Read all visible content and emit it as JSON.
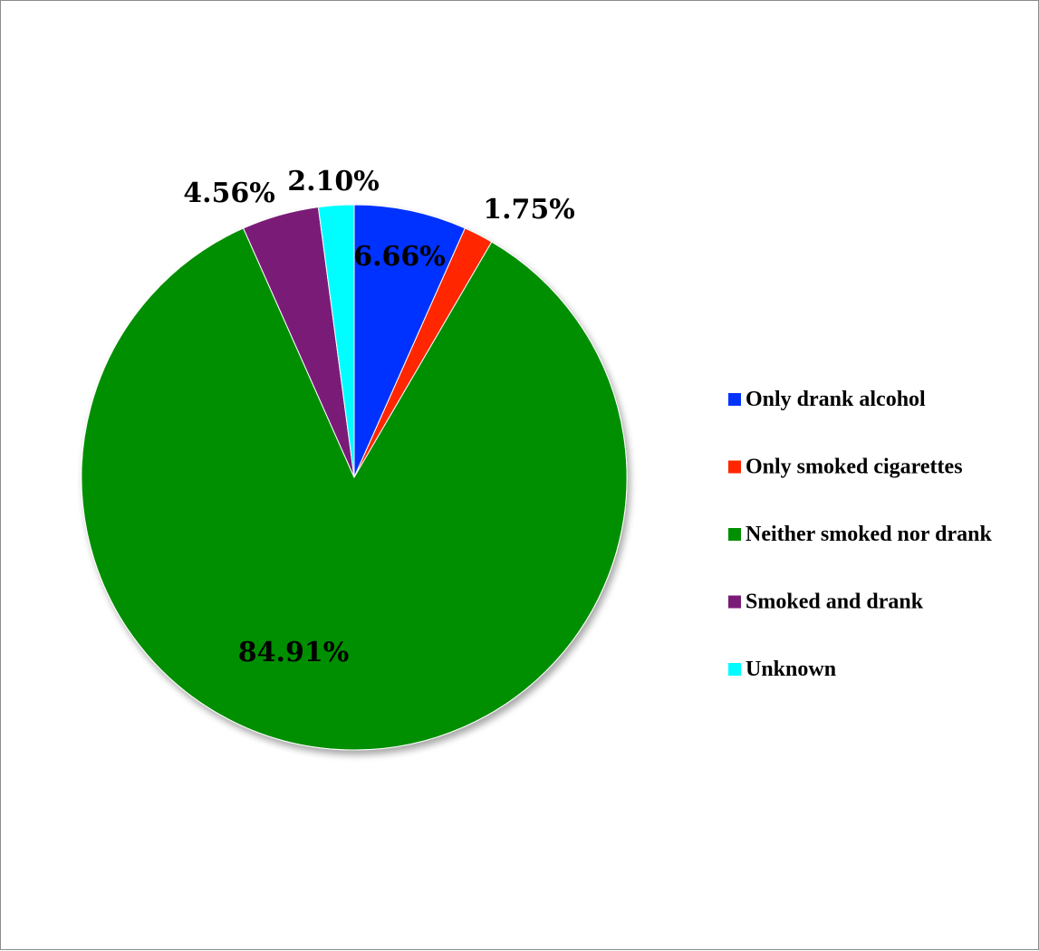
{
  "chart_data": {
    "type": "pie",
    "title": "",
    "start_angle_deg": 0,
    "direction": "clockwise",
    "legend_position": "right",
    "slices": [
      {
        "label": "Only drank alcohol",
        "value": 6.66,
        "value_label": "6.66%",
        "color": "#0433FF"
      },
      {
        "label": "Only smoked cigarettes",
        "value": 1.75,
        "value_label": "1.75%",
        "color": "#FF2600"
      },
      {
        "label": "Neither smoked nor drank",
        "value": 84.91,
        "value_label": "84.91%",
        "color": "#008F00"
      },
      {
        "label": "Smoked and drank",
        "value": 4.56,
        "value_label": "4.56%",
        "color": "#7A1C77"
      },
      {
        "label": "Unknown",
        "value": 2.1,
        "value_label": "2.10%",
        "color": "#00FDFF"
      }
    ]
  }
}
